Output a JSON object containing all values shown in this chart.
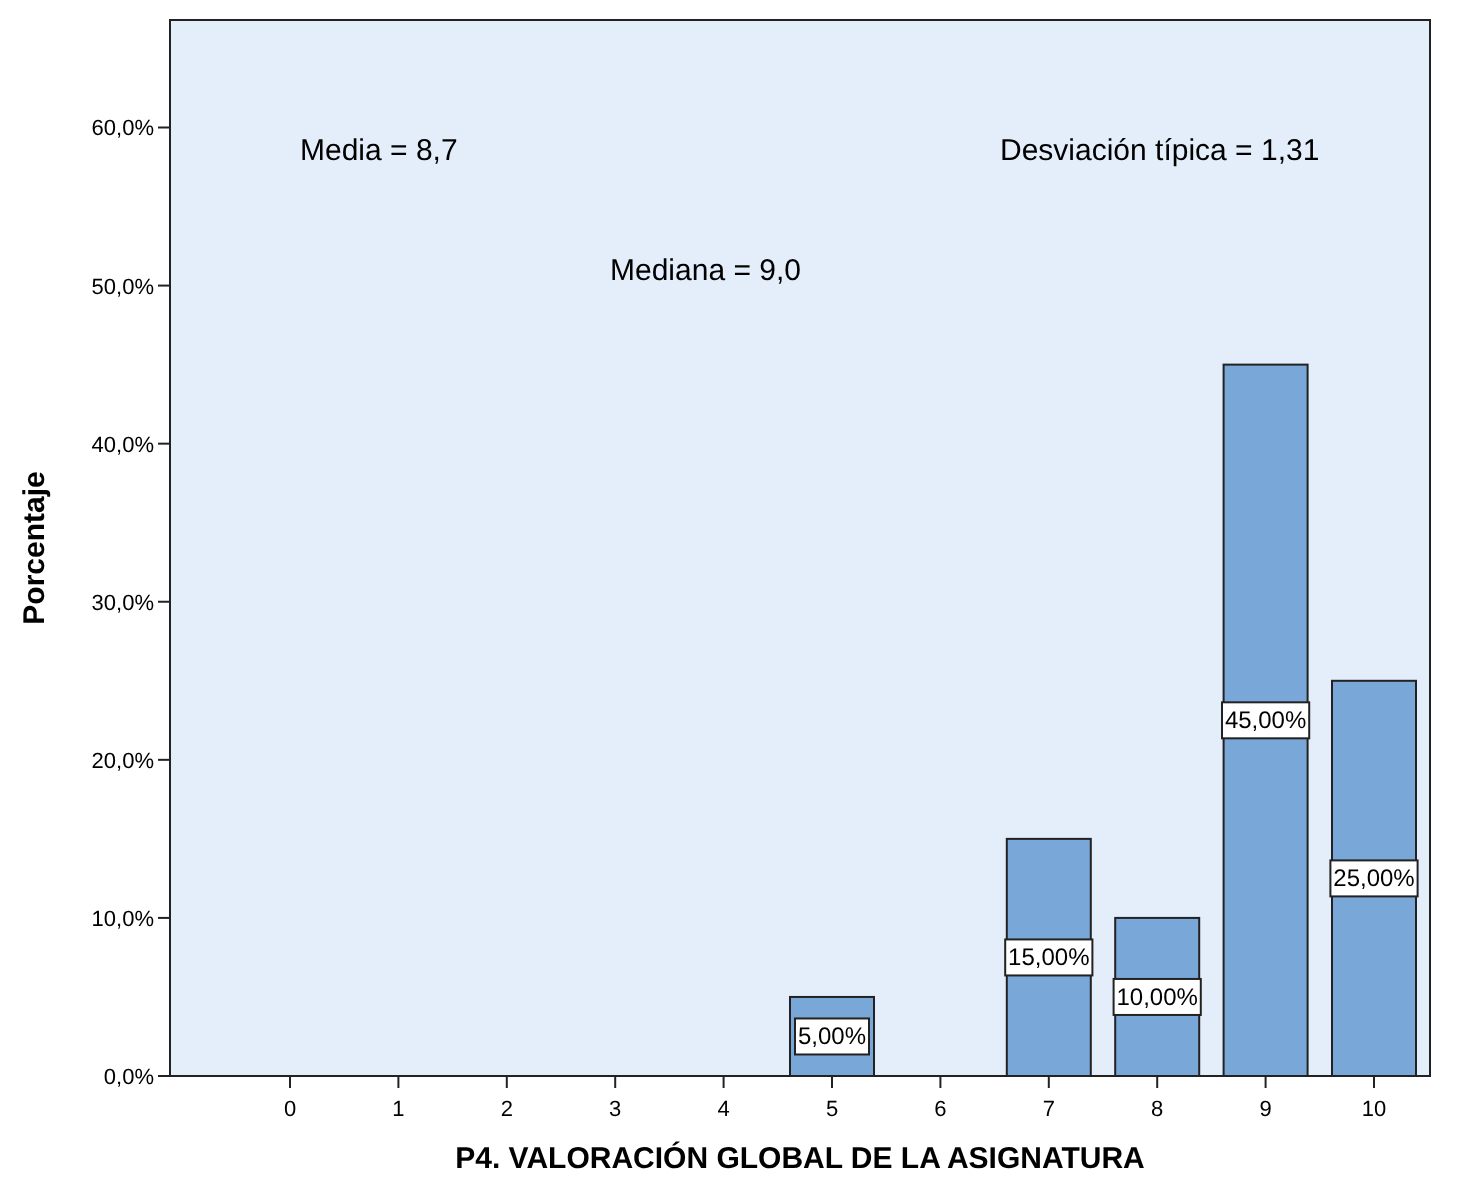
{
  "chart_data": {
    "type": "bar",
    "xlabel": "P4. VALORACIÓN GLOBAL DE LA ASIGNATURA",
    "ylabel": "Porcentaje",
    "categories": [
      "0",
      "1",
      "2",
      "3",
      "4",
      "5",
      "6",
      "7",
      "8",
      "9",
      "10"
    ],
    "values": [
      0,
      0,
      0,
      0,
      0,
      5,
      0,
      15,
      10,
      45,
      25
    ],
    "value_labels": [
      null,
      null,
      null,
      null,
      null,
      "5,00%",
      null,
      "15,00%",
      "10,00%",
      "45,00%",
      "25,00%"
    ],
    "color": "#79a7d8",
    "ylim": [
      0,
      66.8
    ],
    "yticks": [
      {
        "value": 0,
        "label": "0,0%"
      },
      {
        "value": 10,
        "label": "10,0%"
      },
      {
        "value": 20,
        "label": "20,0%"
      },
      {
        "value": 30,
        "label": "30,0%"
      },
      {
        "value": 40,
        "label": "40,0%"
      },
      {
        "value": 50,
        "label": "50,0%"
      },
      {
        "value": 60,
        "label": "60,0%"
      }
    ],
    "annotations": [
      "Media = 8,7",
      "Mediana = 9,0",
      "Desviación típica = 1,31"
    ],
    "grid": false
  }
}
